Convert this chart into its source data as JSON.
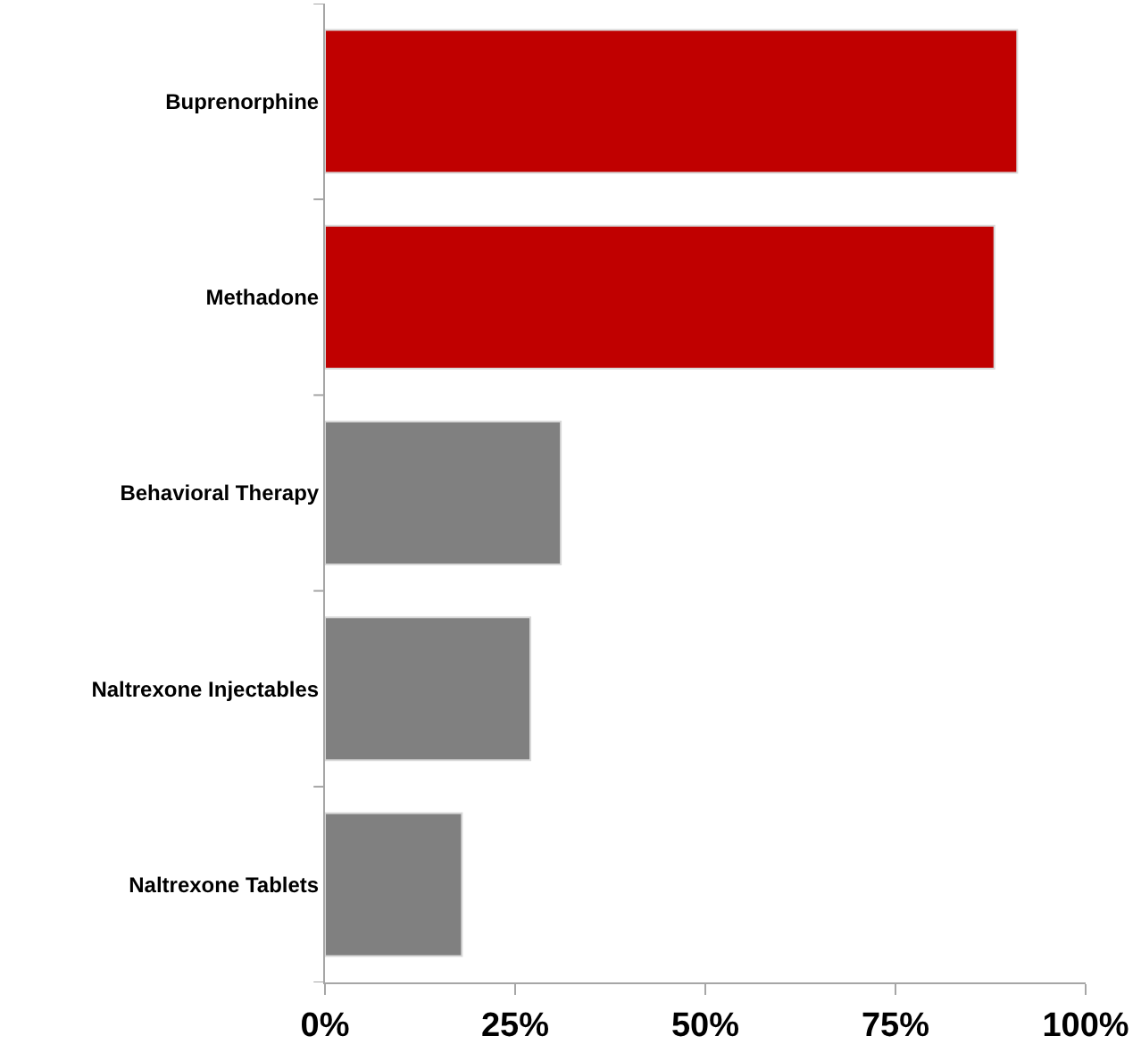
{
  "chart_data": {
    "type": "bar",
    "orientation": "horizontal",
    "categories": [
      "Buprenorphine",
      "Methadone",
      "Behavioral Therapy",
      "Naltrexone Injectables",
      "Naltrexone Tablets"
    ],
    "values": [
      91,
      88,
      31,
      27,
      18
    ],
    "colors": [
      "#c00000",
      "#c00000",
      "#808080",
      "#808080",
      "#808080"
    ],
    "xlim": [
      0,
      100
    ],
    "xticks": [
      {
        "value": 0,
        "label": "0%"
      },
      {
        "value": 25,
        "label": "25%"
      },
      {
        "value": 50,
        "label": "50%"
      },
      {
        "value": 75,
        "label": "75%"
      },
      {
        "value": 100,
        "label": "100%"
      }
    ],
    "tick_labels": "xy"
  }
}
